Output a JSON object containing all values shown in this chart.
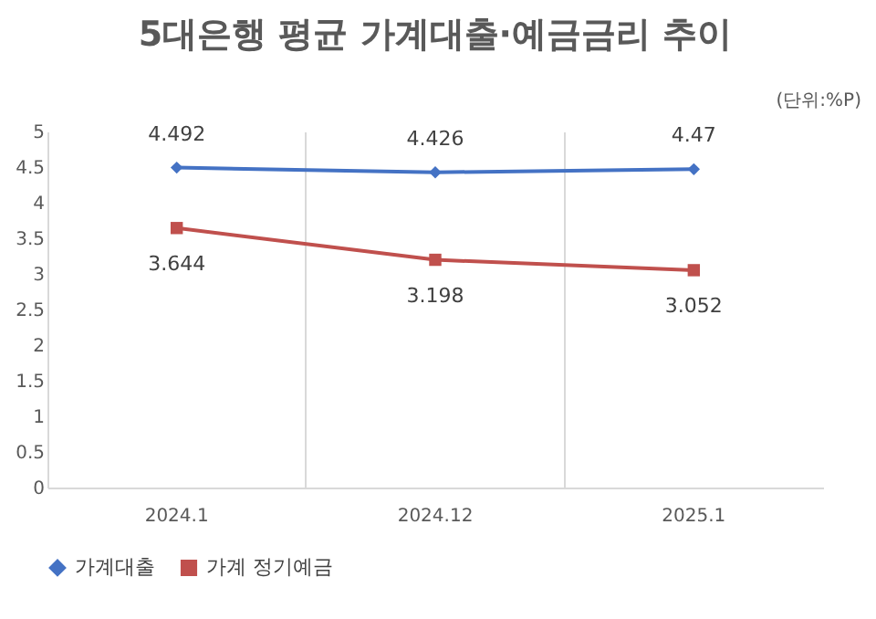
{
  "chart_data": {
    "type": "line",
    "title": "5대은행 평균 가계대출·예금금리 추이",
    "annotations": [
      "(단위:%P)"
    ],
    "categories": [
      "2024.1",
      "2024.12",
      "2025.1"
    ],
    "series": [
      {
        "name": "가계대출",
        "color": "#4472c4",
        "marker": "diamond",
        "values": [
          4.492,
          4.426,
          4.47
        ]
      },
      {
        "name": "가계 정기예금",
        "color": "#c0504d",
        "marker": "square",
        "values": [
          3.644,
          3.198,
          3.052
        ]
      }
    ],
    "ylim": [
      0,
      5
    ],
    "yticks": [
      0,
      0.5,
      1,
      1.5,
      2,
      2.5,
      3,
      3.5,
      4,
      4.5,
      5
    ],
    "grid": "x",
    "legend": "bottom",
    "data_labels": true
  }
}
